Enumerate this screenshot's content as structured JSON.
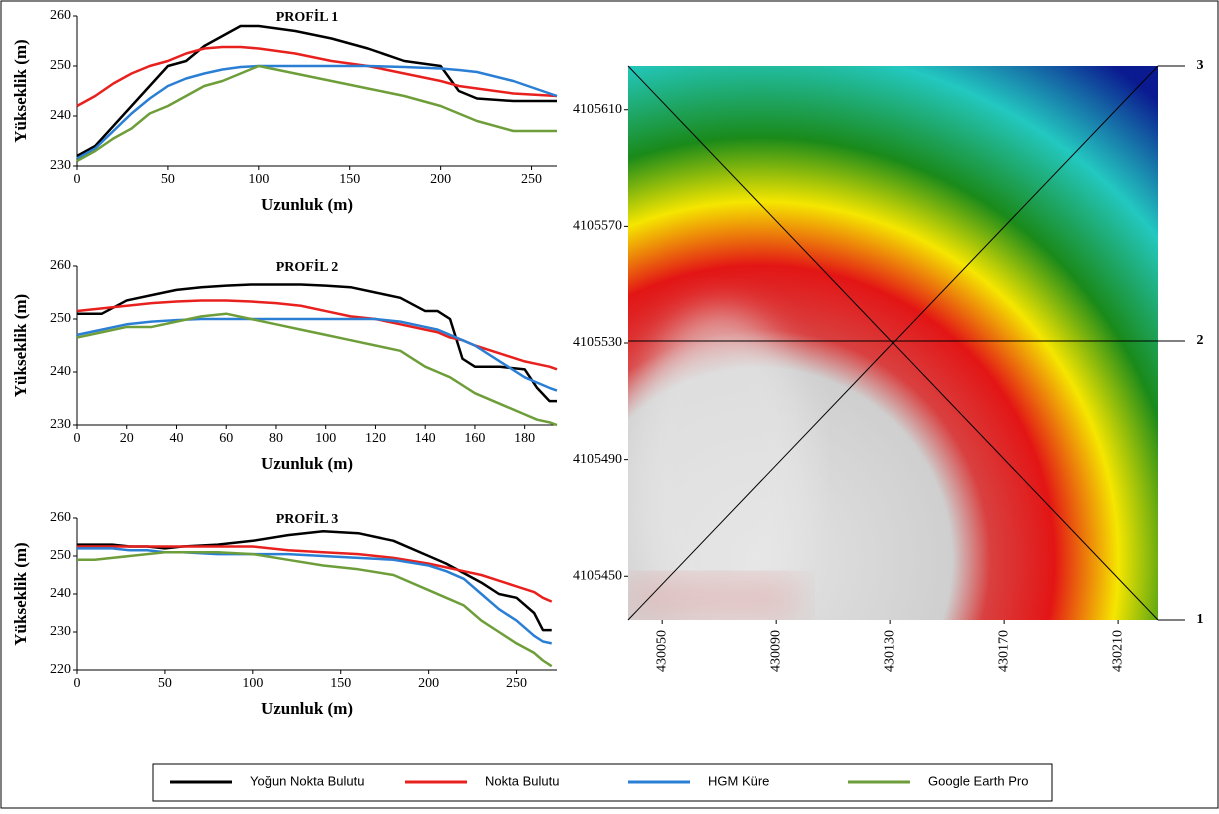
{
  "chart_data": [
    {
      "type": "line",
      "title": "PROFİL 1",
      "x_label": "Uzunluk (m)",
      "y_label": "Yükseklik (m)",
      "x": [
        0,
        10,
        20,
        30,
        40,
        50,
        60,
        70,
        80,
        90,
        100,
        120,
        140,
        160,
        180,
        200,
        210,
        220,
        240,
        264
      ],
      "xlim": [
        0,
        264
      ],
      "ylim": [
        230,
        260
      ],
      "xticks": [
        0,
        50,
        100,
        150,
        200,
        250
      ],
      "yticks": [
        230,
        240,
        250,
        260
      ],
      "series": [
        {
          "name": "Yoğun Nokta Bulutu",
          "color": "#000000",
          "values": [
            232,
            234,
            238,
            242,
            246,
            250,
            251,
            254,
            256,
            258,
            258,
            257,
            255.5,
            253.5,
            251,
            250,
            245,
            243.5,
            243,
            243
          ]
        },
        {
          "name": "Nokta Bulutu",
          "color": "#e8201e",
          "values": [
            242,
            244,
            246.5,
            248.5,
            250,
            251,
            252.5,
            253.5,
            253.8,
            253.8,
            253.5,
            252.5,
            251,
            250,
            248.5,
            247,
            246,
            245.5,
            244.5,
            244
          ]
        },
        {
          "name": "HGM Küre",
          "color": "#2a7fd4",
          "values": [
            231.5,
            233.5,
            237,
            240.5,
            243.5,
            246,
            247.5,
            248.5,
            249.3,
            249.8,
            250,
            250,
            250,
            250,
            249.8,
            249.5,
            249.2,
            248.8,
            247,
            244
          ]
        },
        {
          "name": "Google Earth Pro",
          "color": "#6e9e3a",
          "values": [
            231,
            233,
            235.5,
            237.5,
            240.5,
            242,
            244,
            246,
            247,
            248.5,
            250,
            248.5,
            247,
            245.5,
            244,
            242,
            240.5,
            239,
            237,
            237
          ]
        }
      ]
    },
    {
      "type": "line",
      "title": "PROFİL 2",
      "x_label": "Uzunluk (m)",
      "y_label": "Yükseklik (m)",
      "x": [
        0,
        10,
        20,
        30,
        40,
        50,
        60,
        70,
        80,
        90,
        100,
        110,
        120,
        130,
        140,
        145,
        150,
        155,
        160,
        170,
        180,
        185,
        190,
        193
      ],
      "xlim": [
        0,
        193
      ],
      "ylim": [
        230,
        260
      ],
      "xticks": [
        0,
        20,
        40,
        60,
        80,
        100,
        120,
        140,
        160,
        180
      ],
      "yticks": [
        230,
        240,
        250,
        260
      ],
      "series": [
        {
          "name": "Yoğun Nokta Bulutu",
          "color": "#000000",
          "values": [
            251,
            251,
            253.5,
            254.5,
            255.5,
            256,
            256.3,
            256.5,
            256.5,
            256.5,
            256.3,
            256,
            255,
            254,
            251.5,
            251.5,
            250,
            242.5,
            241,
            241,
            240.5,
            237,
            234.5,
            234.5
          ]
        },
        {
          "name": "Nokta Bulutu",
          "color": "#e8201e",
          "values": [
            251.5,
            252,
            252.5,
            253,
            253.3,
            253.5,
            253.5,
            253.3,
            253,
            252.5,
            251.5,
            250.5,
            250,
            249,
            248,
            247.5,
            246.5,
            246,
            245,
            243.5,
            242,
            241.5,
            241,
            240.5
          ]
        },
        {
          "name": "HGM Küre",
          "color": "#2a7fd4",
          "values": [
            247,
            248,
            249,
            249.5,
            249.8,
            250,
            250,
            250,
            250,
            250,
            250,
            250,
            250,
            249.5,
            248.5,
            248,
            247,
            246,
            245,
            242,
            239,
            238,
            237,
            236.5
          ]
        },
        {
          "name": "Google Earth Pro",
          "color": "#6e9e3a",
          "values": [
            246.5,
            247.5,
            248.5,
            248.5,
            249.5,
            250.5,
            251,
            250,
            249,
            248,
            247,
            246,
            245,
            244,
            241,
            240,
            239,
            237.5,
            236,
            234,
            232,
            231,
            230.5,
            230
          ]
        }
      ]
    },
    {
      "type": "line",
      "title": "PROFİL 3",
      "x_label": "Uzunluk (m)",
      "y_label": "Yükseklik (m)",
      "x": [
        0,
        10,
        20,
        30,
        40,
        50,
        60,
        80,
        100,
        120,
        140,
        160,
        180,
        200,
        210,
        220,
        230,
        240,
        250,
        260,
        265,
        270
      ],
      "xlim": [
        0,
        273
      ],
      "ylim": [
        220,
        260
      ],
      "xticks": [
        0,
        50,
        100,
        150,
        200,
        250
      ],
      "yticks": [
        220,
        230,
        240,
        250,
        260
      ],
      "series": [
        {
          "name": "Yoğun Nokta Bulutu",
          "color": "#000000",
          "values": [
            253,
            253,
            253,
            252.5,
            252.5,
            252,
            252.5,
            253,
            254,
            255.5,
            256.5,
            256,
            254,
            250,
            248,
            245.5,
            243,
            240,
            239,
            235,
            230.5,
            230.5
          ]
        },
        {
          "name": "Nokta Bulutu",
          "color": "#e8201e",
          "values": [
            252.5,
            252.5,
            252.5,
            252.5,
            252.5,
            252.5,
            252.5,
            252.5,
            252.5,
            251.5,
            251,
            250.5,
            249.5,
            248,
            247,
            246,
            245,
            243.5,
            242,
            240.5,
            239,
            238
          ]
        },
        {
          "name": "HGM Küre",
          "color": "#2a7fd4",
          "values": [
            252,
            252,
            252,
            251.5,
            251.5,
            251,
            251,
            250.5,
            250.5,
            250.5,
            250,
            249.5,
            249,
            247.5,
            246,
            244,
            240,
            236,
            233,
            229,
            227.5,
            227
          ]
        },
        {
          "name": "Google Earth Pro",
          "color": "#6e9e3a",
          "values": [
            249,
            249,
            249.5,
            250,
            250.5,
            251,
            251,
            251,
            250.5,
            249,
            247.5,
            246.5,
            245,
            241,
            239,
            237,
            233,
            230,
            227,
            224.5,
            222.5,
            221
          ]
        }
      ]
    },
    {
      "type": "map",
      "xlim": [
        430038,
        430224
      ],
      "ylim": [
        4105435,
        4105625
      ],
      "xticks": [
        430050,
        430090,
        430130,
        430170,
        430210
      ],
      "yticks": [
        4105450,
        4105490,
        4105530,
        4105570,
        4105610
      ],
      "profile_labels": [
        "1",
        "2",
        "3"
      ]
    }
  ]
}
